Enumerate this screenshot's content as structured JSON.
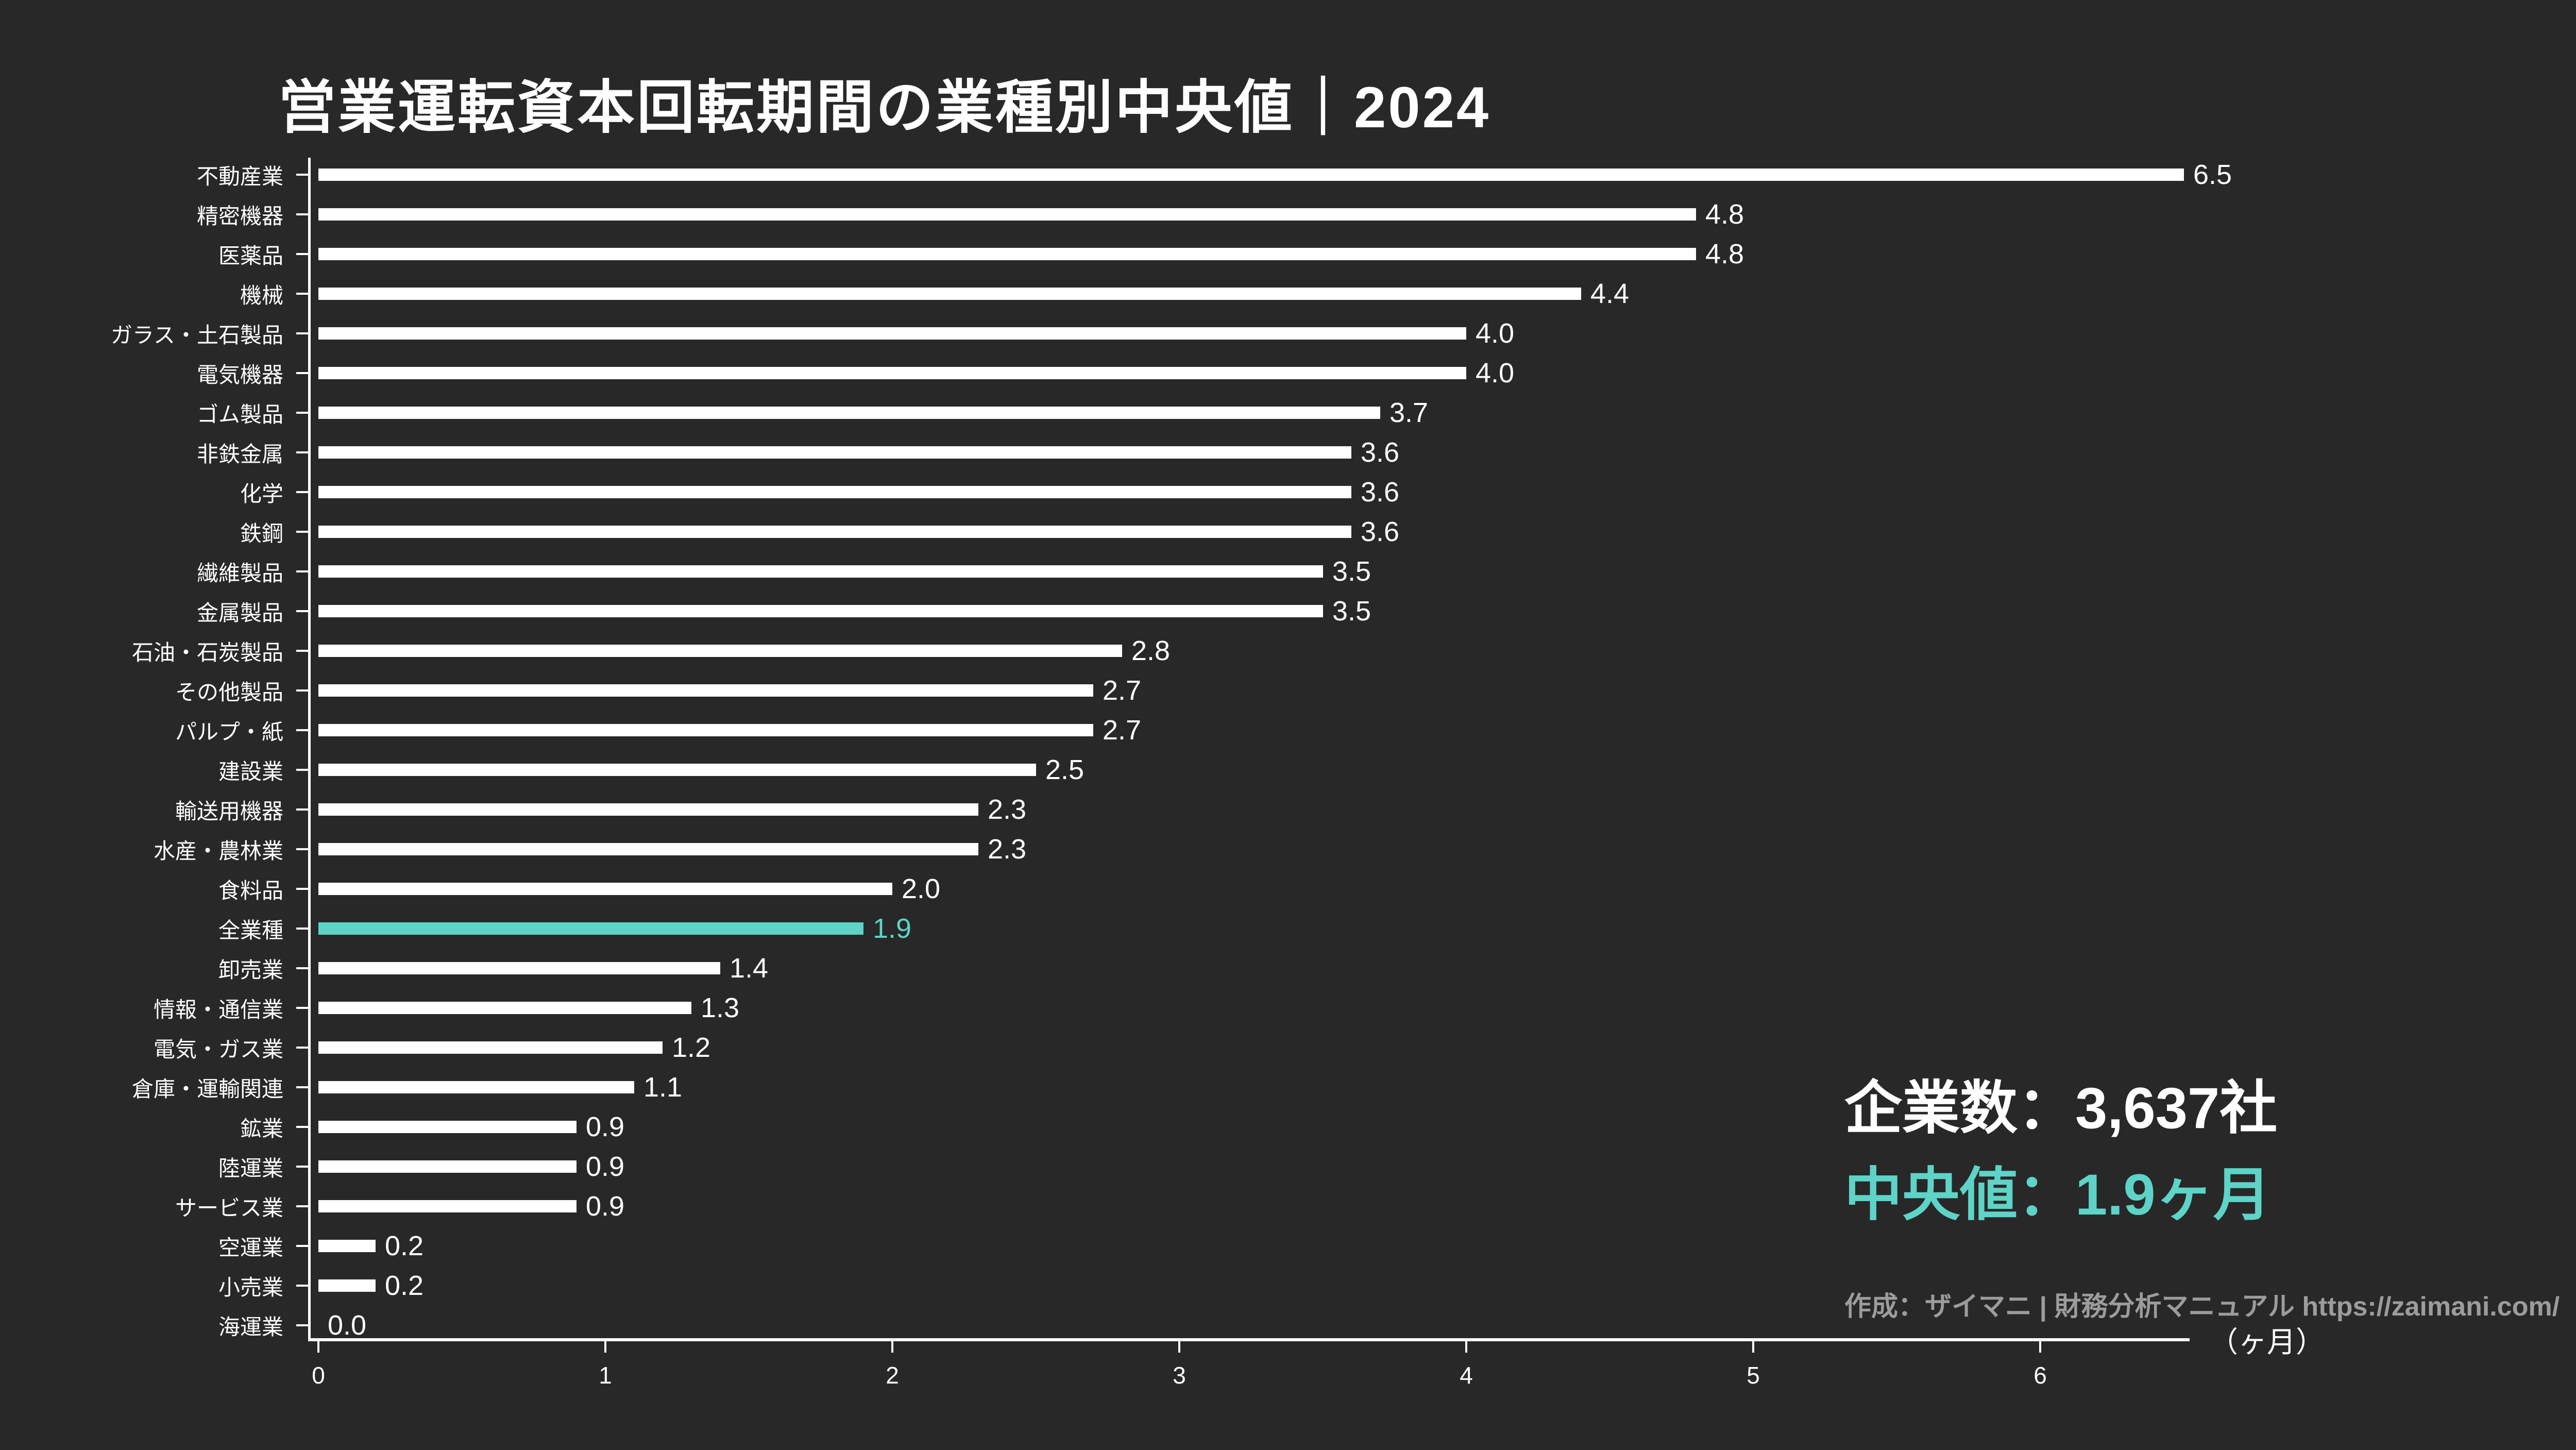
{
  "title": "営業運転資本回転期間の業種別中央値｜2024",
  "chart_data": {
    "type": "bar",
    "orientation": "horizontal",
    "title": "営業運転資本回転期間の業種別中央値｜2024",
    "xlabel": "（ヶ月）",
    "unit": "ヶ月",
    "xlim": [
      0,
      6.51
    ],
    "x_ticks": [
      0,
      1,
      2,
      3,
      4,
      5,
      6
    ],
    "grid": false,
    "legend": "none",
    "categories": [
      "不動産業",
      "精密機器",
      "医薬品",
      "機械",
      "ガラス・土石製品",
      "電気機器",
      "ゴム製品",
      "非鉄金属",
      "化学",
      "鉄鋼",
      "繊維製品",
      "金属製品",
      "石油・石炭製品",
      "その他製品",
      "パルプ・紙",
      "建設業",
      "輸送用機器",
      "水産・農林業",
      "食料品",
      "全業種",
      "卸売業",
      "情報・通信業",
      "電気・ガス業",
      "倉庫・運輸関連",
      "鉱業",
      "陸運業",
      "サービス業",
      "空運業",
      "小売業",
      "海運業"
    ],
    "values": [
      6.5,
      4.8,
      4.8,
      4.4,
      4.0,
      4.0,
      3.7,
      3.6,
      3.6,
      3.6,
      3.5,
      3.5,
      2.8,
      2.7,
      2.7,
      2.5,
      2.3,
      2.3,
      2.0,
      1.9,
      1.4,
      1.3,
      1.2,
      1.1,
      0.9,
      0.9,
      0.9,
      0.2,
      0.2,
      0.0
    ],
    "highlight_category": "全業種",
    "highlight_index": 19,
    "colors": {
      "background": "#282828",
      "bar": "#ffffff",
      "highlight": "#5ed3c7",
      "text": "#ffffff",
      "muted_text": "#9c9c9c"
    }
  },
  "stats": {
    "companies": "企業数：3,637社",
    "median": "中央値：1.9ヶ月",
    "attribution": "作成：ザイマニ | 財務分析マニュアル https://zaimani.com/"
  }
}
